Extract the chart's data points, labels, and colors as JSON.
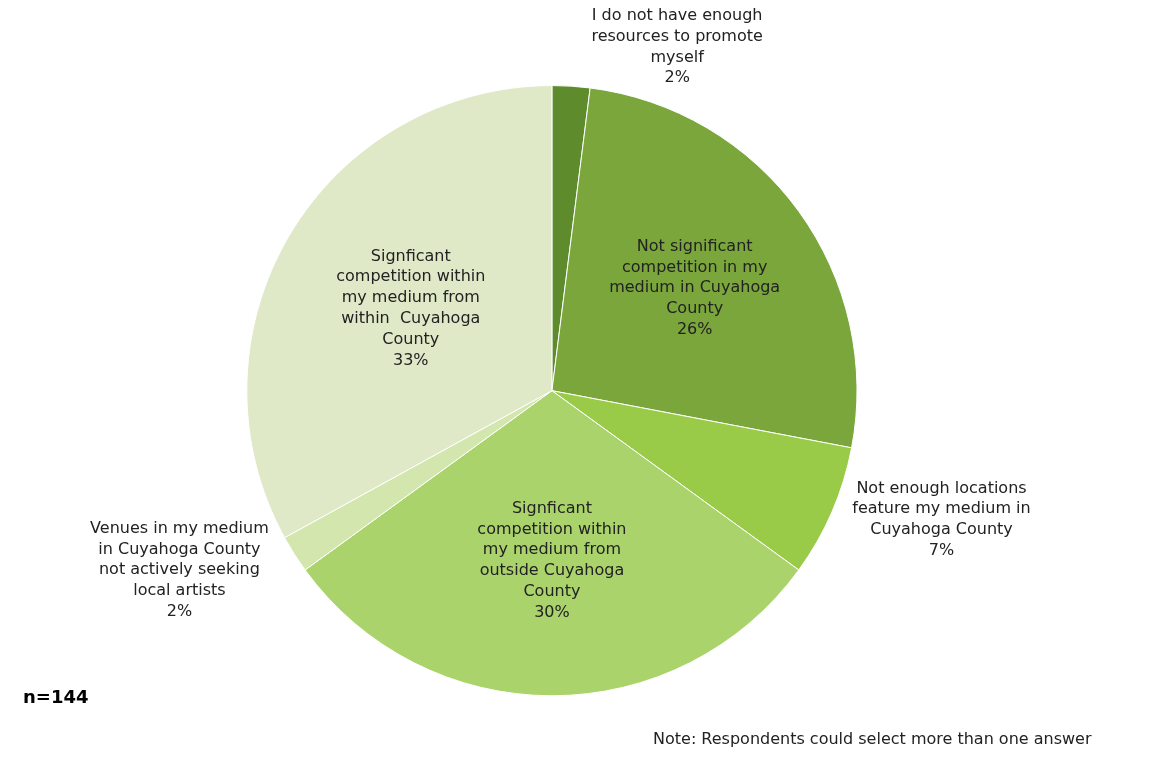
{
  "chart_data": {
    "type": "pie",
    "categories": [
      "I do not have enough resources to promote myself",
      "Not significant competition in my medium in Cuyahoga County",
      "Not enough locations feature my medium in Cuyahoga County",
      "Signficant competition within my medium from outside Cuyahoga County",
      "Venues in my medium in Cuyahoga County not actively seeking local artists",
      "Signficant competition within my medium from within  Cuyahoga County"
    ],
    "values": [
      2,
      26,
      7,
      30,
      2,
      33
    ],
    "colors": [
      "#5e8c2c",
      "#7aa63c",
      "#9acb48",
      "#aad36c",
      "#d3e6ad",
      "#dfe9c8"
    ],
    "value_labels": [
      "2%",
      "26%",
      "7%",
      "30%",
      "2%",
      "33%"
    ],
    "legend": false,
    "annotations": [
      "n=144",
      "Note: Respondents could select more than one answer"
    ]
  }
}
